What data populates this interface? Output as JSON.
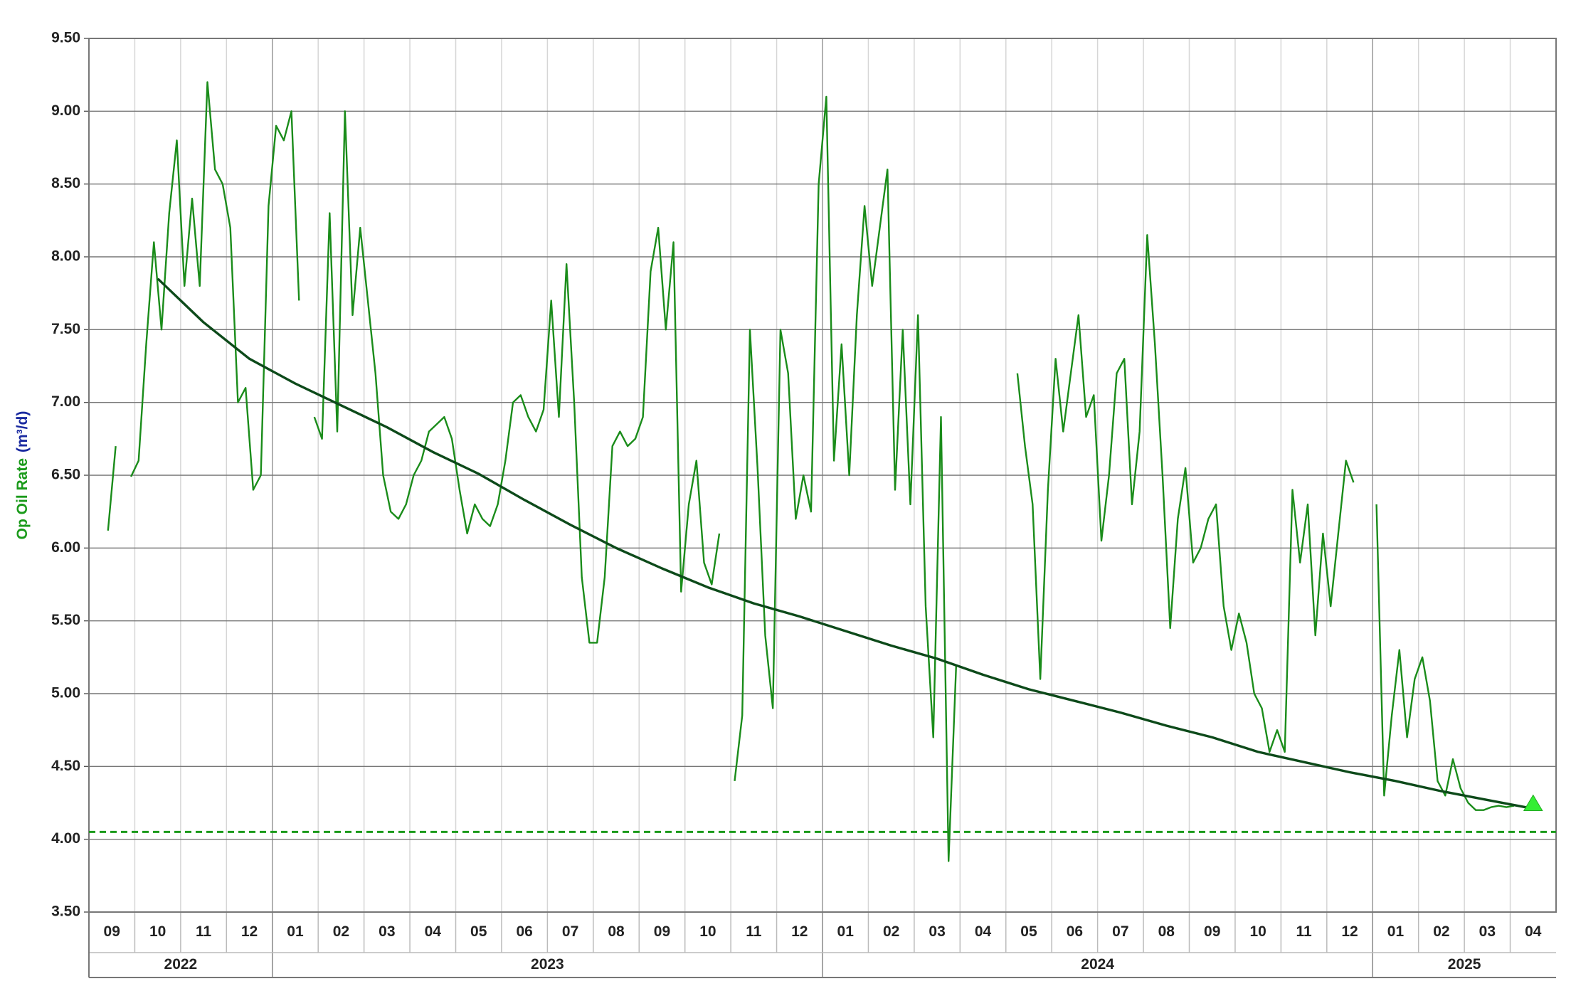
{
  "chart_data": {
    "type": "line",
    "y_label": [
      "Op Oil Rate",
      "(m³/d)"
    ],
    "y_label_colors": [
      "#1a9a1a",
      "#1a2aa0"
    ],
    "ylim": [
      3.5,
      9.5
    ],
    "yticks": [
      {
        "value": 3.5,
        "label": "3.50"
      },
      {
        "value": 4.0,
        "label": "4.00"
      },
      {
        "value": 4.5,
        "label": "4.50"
      },
      {
        "value": 5.0,
        "label": "5.00"
      },
      {
        "value": 5.5,
        "label": "5.50"
      },
      {
        "value": 6.0,
        "label": "6.00"
      },
      {
        "value": 6.5,
        "label": "6.50"
      },
      {
        "value": 7.0,
        "label": "7.00"
      },
      {
        "value": 7.5,
        "label": "7.50"
      },
      {
        "value": 8.0,
        "label": "8.00"
      },
      {
        "value": 8.5,
        "label": "8.50"
      },
      {
        "value": 9.0,
        "label": "9.00"
      },
      {
        "value": 9.5,
        "label": "9.50"
      }
    ],
    "months": [
      {
        "value": "2022-09",
        "label": "09"
      },
      {
        "value": "2022-10",
        "label": "10"
      },
      {
        "value": "2022-11",
        "label": "11"
      },
      {
        "value": "2022-12",
        "label": "12"
      },
      {
        "value": "2023-01",
        "label": "01"
      },
      {
        "value": "2023-02",
        "label": "02"
      },
      {
        "value": "2023-03",
        "label": "03"
      },
      {
        "value": "2023-04",
        "label": "04"
      },
      {
        "value": "2023-05",
        "label": "05"
      },
      {
        "value": "2023-06",
        "label": "06"
      },
      {
        "value": "2023-07",
        "label": "07"
      },
      {
        "value": "2023-08",
        "label": "08"
      },
      {
        "value": "2023-09",
        "label": "09"
      },
      {
        "value": "2023-10",
        "label": "10"
      },
      {
        "value": "2023-11",
        "label": "11"
      },
      {
        "value": "2023-12",
        "label": "12"
      },
      {
        "value": "2024-01",
        "label": "01"
      },
      {
        "value": "2024-02",
        "label": "02"
      },
      {
        "value": "2024-03",
        "label": "03"
      },
      {
        "value": "2024-04",
        "label": "04"
      },
      {
        "value": "2024-05",
        "label": "05"
      },
      {
        "value": "2024-06",
        "label": "06"
      },
      {
        "value": "2024-07",
        "label": "07"
      },
      {
        "value": "2024-08",
        "label": "08"
      },
      {
        "value": "2024-09",
        "label": "09"
      },
      {
        "value": "2024-10",
        "label": "10"
      },
      {
        "value": "2024-11",
        "label": "11"
      },
      {
        "value": "2024-12",
        "label": "12"
      },
      {
        "value": "2025-01",
        "label": "01"
      },
      {
        "value": "2025-02",
        "label": "02"
      },
      {
        "value": "2025-03",
        "label": "03"
      },
      {
        "value": "2025-04",
        "label": "04"
      }
    ],
    "years": [
      "2022",
      "2023",
      "2024",
      "2025"
    ],
    "grid": true,
    "reference_line": {
      "value": 4.05,
      "color": "#1a9a1a"
    },
    "series": [
      {
        "color": "#1a8c1a",
        "width": 2.4,
        "x": [
          "2022-09",
          "2022-09",
          "2022-09",
          "2022-09",
          "2022-09",
          "2022-09",
          "2022-10",
          "2022-10",
          "2022-10",
          "2022-10",
          "2022-10",
          "2022-10",
          "2022-11",
          "2022-11",
          "2022-11",
          "2022-11",
          "2022-11",
          "2022-11",
          "2022-12",
          "2022-12",
          "2022-12",
          "2022-12",
          "2022-12",
          "2022-12",
          "2023-01",
          "2023-01",
          "2023-01",
          "2023-01",
          "2023-01",
          "2023-01",
          "2023-02",
          "2023-02",
          "2023-02",
          "2023-02",
          "2023-02",
          "2023-02",
          "2023-03",
          "2023-03",
          "2023-03",
          "2023-03",
          "2023-03",
          "2023-03",
          "2023-04",
          "2023-04",
          "2023-04",
          "2023-04",
          "2023-04",
          "2023-04",
          "2023-05",
          "2023-05",
          "2023-05",
          "2023-05",
          "2023-05",
          "2023-05",
          "2023-06",
          "2023-06",
          "2023-06",
          "2023-06",
          "2023-06",
          "2023-06",
          "2023-07",
          "2023-07",
          "2023-07",
          "2023-07",
          "2023-07",
          "2023-07",
          "2023-08",
          "2023-08",
          "2023-08",
          "2023-08",
          "2023-08",
          "2023-08",
          "2023-09",
          "2023-09",
          "2023-09",
          "2023-09",
          "2023-09",
          "2023-09",
          "2023-10",
          "2023-10",
          "2023-10",
          "2023-10",
          "2023-10",
          "2023-10",
          "2023-11",
          "2023-11",
          "2023-11",
          "2023-11",
          "2023-11",
          "2023-11",
          "2023-12",
          "2023-12",
          "2023-12",
          "2023-12",
          "2023-12",
          "2023-12",
          "2024-01",
          "2024-01",
          "2024-01",
          "2024-01",
          "2024-01",
          "2024-01",
          "2024-02",
          "2024-02",
          "2024-02",
          "2024-02",
          "2024-02",
          "2024-02",
          "2024-03",
          "2024-03",
          "2024-03",
          "2024-03",
          "2024-03",
          "2024-03",
          "2024-04",
          "2024-04",
          "2024-04",
          "2024-04",
          "2024-04",
          "2024-04",
          "2024-05",
          "2024-05",
          "2024-05",
          "2024-05",
          "2024-05",
          "2024-05",
          "2024-06",
          "2024-06",
          "2024-06",
          "2024-06",
          "2024-06",
          "2024-06",
          "2024-07",
          "2024-07",
          "2024-07",
          "2024-07",
          "2024-07",
          "2024-07",
          "2024-08",
          "2024-08",
          "2024-08",
          "2024-08",
          "2024-08",
          "2024-08",
          "2024-09",
          "2024-09",
          "2024-09",
          "2024-09",
          "2024-09",
          "2024-09",
          "2024-10",
          "2024-10",
          "2024-10",
          "2024-10",
          "2024-10",
          "2024-10",
          "2024-11",
          "2024-11",
          "2024-11",
          "2024-11",
          "2024-11",
          "2024-11",
          "2024-12",
          "2024-12",
          "2024-12",
          "2024-12",
          "2024-12",
          "2024-12",
          "2025-01",
          "2025-01",
          "2025-01",
          "2025-01",
          "2025-01",
          "2025-01",
          "2025-02",
          "2025-02",
          "2025-02",
          "2025-02",
          "2025-02",
          "2025-02",
          "2025-03",
          "2025-03",
          "2025-03",
          "2025-03",
          "2025-03",
          "2025-03",
          "2025-04",
          "2025-04",
          "2025-04",
          "2025-04",
          "2025-04",
          "2025-04"
        ],
        "values": [
          null,
          null,
          6.12,
          6.7,
          null,
          6.49,
          6.6,
          7.4,
          8.1,
          7.5,
          8.3,
          8.8,
          7.8,
          8.4,
          7.8,
          9.2,
          8.6,
          8.5,
          8.2,
          7.0,
          7.1,
          6.4,
          6.5,
          8.35,
          8.9,
          8.8,
          9.0,
          7.7,
          null,
          6.9,
          6.75,
          8.3,
          6.8,
          9.0,
          7.6,
          8.2,
          7.7,
          7.2,
          6.5,
          6.25,
          6.2,
          6.3,
          6.5,
          6.6,
          6.8,
          6.85,
          6.9,
          6.75,
          6.4,
          6.1,
          6.3,
          6.2,
          6.15,
          6.3,
          6.6,
          7.0,
          7.05,
          6.9,
          6.8,
          6.95,
          7.7,
          6.9,
          7.95,
          7.0,
          5.8,
          5.35,
          5.35,
          5.8,
          6.7,
          6.8,
          6.7,
          6.75,
          6.9,
          7.9,
          8.2,
          7.5,
          8.1,
          5.7,
          6.3,
          6.6,
          5.9,
          5.75,
          6.1,
          null,
          4.4,
          4.85,
          7.5,
          6.55,
          5.4,
          4.9,
          7.5,
          7.2,
          6.2,
          6.5,
          6.25,
          8.5,
          9.1,
          6.6,
          7.4,
          6.5,
          7.6,
          8.35,
          7.8,
          8.2,
          8.6,
          6.4,
          7.5,
          6.3,
          7.6,
          5.6,
          4.7,
          6.9,
          3.85,
          5.2,
          null,
          null,
          null,
          null,
          null,
          null,
          null,
          7.2,
          6.7,
          6.3,
          5.1,
          6.4,
          7.3,
          6.8,
          7.2,
          7.6,
          6.9,
          7.05,
          6.05,
          6.5,
          7.2,
          7.3,
          6.3,
          6.8,
          8.15,
          7.4,
          6.5,
          5.45,
          6.2,
          6.55,
          5.9,
          6.0,
          6.2,
          6.3,
          5.6,
          5.3,
          5.55,
          5.35,
          5.0,
          4.9,
          4.6,
          4.75,
          4.6,
          6.4,
          5.9,
          6.3,
          5.4,
          6.1,
          5.6,
          6.1,
          6.6,
          6.45,
          null,
          null,
          6.3,
          4.3,
          4.85,
          5.3,
          4.7,
          5.1,
          5.25,
          4.95,
          4.4,
          4.3,
          4.55,
          4.35,
          4.25,
          4.2,
          4.2,
          4.22,
          4.23,
          4.22,
          4.23,
          null,
          null,
          null,
          null,
          null
        ]
      },
      {
        "color": "#0d4a1a",
        "width": 3.4,
        "x": [
          "2022-10",
          "2022-11",
          "2022-12",
          "2023-01",
          "2023-02",
          "2023-03",
          "2023-04",
          "2023-05",
          "2023-06",
          "2023-07",
          "2023-08",
          "2023-09",
          "2023-10",
          "2023-11",
          "2023-12",
          "2024-01",
          "2024-02",
          "2024-03",
          "2024-04",
          "2024-05",
          "2024-06",
          "2024-07",
          "2024-08",
          "2024-09",
          "2024-10",
          "2024-11",
          "2024-12",
          "2025-01",
          "2025-02",
          "2025-03",
          "2025-04"
        ],
        "values": [
          7.85,
          7.55,
          7.3,
          7.13,
          6.98,
          6.83,
          6.66,
          6.51,
          6.33,
          6.16,
          6.0,
          5.86,
          5.73,
          5.62,
          5.53,
          5.43,
          5.33,
          5.24,
          5.13,
          5.03,
          4.95,
          4.87,
          4.78,
          4.7,
          4.6,
          4.53,
          4.46,
          4.4,
          4.33,
          4.27,
          4.21
        ]
      }
    ],
    "marker": {
      "x": "2025-04",
      "value": 4.24,
      "color": "#33ee33"
    }
  }
}
